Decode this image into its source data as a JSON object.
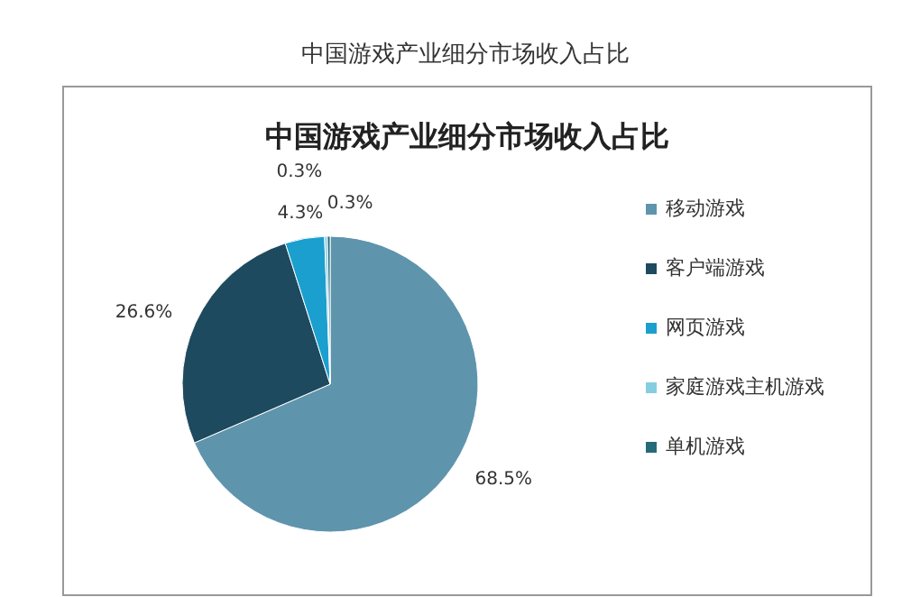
{
  "chart_data": {
    "type": "pie",
    "title": "中国游戏产业细分市场收入占比",
    "subtitle": "中国游戏产业细分市场收入占比",
    "categories": [
      "移动游戏",
      "客户端游戏",
      "网页游戏",
      "家庭游戏主机游戏",
      "单机游戏"
    ],
    "values": [
      68.5,
      26.6,
      4.3,
      0.3,
      0.3
    ],
    "value_labels": [
      "68.5%",
      "26.6%",
      "4.3%",
      "0.3%",
      "0.3%"
    ],
    "colors": [
      "#5f94ad",
      "#1d4a5e",
      "#1b9fcf",
      "#86cde0",
      "#236b78"
    ],
    "legend": "right"
  }
}
